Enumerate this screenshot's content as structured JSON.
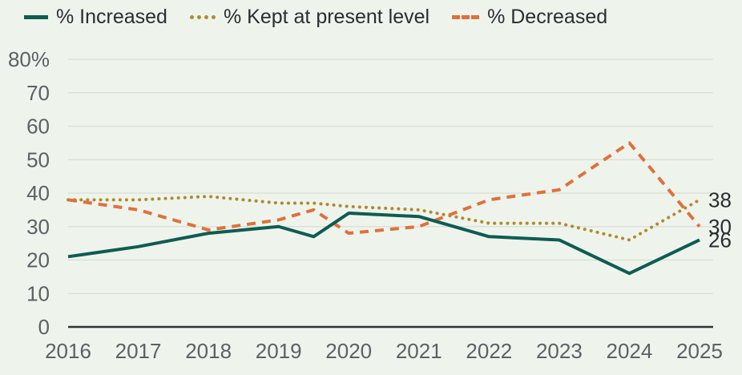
{
  "legend": [
    {
      "label": "% Increased",
      "color": "#0f5c51",
      "style": "solid"
    },
    {
      "label": "% Kept at present level",
      "color": "#b08b2e",
      "style": "dotted"
    },
    {
      "label": "% Decreased",
      "color": "#e0703c",
      "style": "dashed"
    }
  ],
  "chart_data": {
    "type": "line",
    "x": [
      2016,
      2017,
      2018,
      2019,
      2019.5,
      2020,
      2021,
      2022,
      2023,
      2024,
      2025
    ],
    "x_tick_labels": [
      "2016",
      "2017",
      "2018",
      "2019",
      "2020",
      "2021",
      "2022",
      "2023",
      "2024",
      "2025"
    ],
    "y_tick_labels": [
      "0",
      "10",
      "20",
      "30",
      "40",
      "50",
      "60",
      "70",
      "80%"
    ],
    "xlim": [
      2016,
      2025
    ],
    "ylim": [
      0,
      80
    ],
    "grid": true,
    "legend_position": "top-left",
    "series": [
      {
        "name": "% Kept at present level",
        "color": "#b08b2e",
        "dash": "dotted",
        "values": [
          38,
          38,
          39,
          37,
          37,
          36,
          35,
          31,
          31,
          26,
          38
        ],
        "end_label": "38"
      },
      {
        "name": "% Decreased",
        "color": "#e0703c",
        "dash": "dashed",
        "values": [
          38,
          35,
          29,
          32,
          35,
          28,
          30,
          38,
          41,
          55,
          30
        ],
        "end_label": "30"
      },
      {
        "name": "% Increased",
        "color": "#0f5c51",
        "dash": "solid",
        "values": [
          21,
          24,
          28,
          30,
          27,
          34,
          33,
          27,
          26,
          16,
          26
        ],
        "end_label": "26"
      }
    ]
  },
  "colors": {
    "background": "#eef4ec",
    "grid": "#dce1d7",
    "axis_line": "#333333",
    "tick_text": "#5d6066",
    "label_text": "#2b2d33"
  }
}
